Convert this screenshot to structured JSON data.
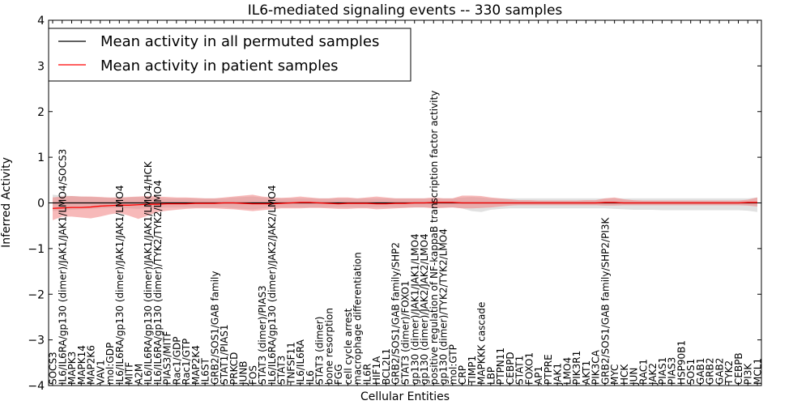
{
  "chart_data": {
    "type": "line",
    "title": "IL6-mediated signaling events -- 330 samples",
    "xlabel": "Cellular Entities",
    "ylabel": "Inferred Activity",
    "ylim": [
      -4,
      4
    ],
    "yticks": [
      "4",
      "3",
      "2",
      "1",
      "0",
      "−1",
      "−2",
      "−3",
      "−4"
    ],
    "legend": {
      "location": "top-left",
      "entries": [
        {
          "label": "Mean activity in all permuted samples",
          "color": "#000000"
        },
        {
          "label": "Mean activity in patient samples",
          "color": "#ff0000"
        }
      ]
    },
    "categories": [
      "SOCS3",
      "IL6/IL6RA/gp130 (dimer)/JAK1/JAK1/LMO4/SOCS3",
      "MAPK3",
      "MAPK14",
      "MAP2K6",
      "VAV1",
      "mol:GDP",
      "IL6/IL6RA/gp130 (dimer)/JAK1/JAK1/LMO4",
      "MITF",
      "A2M",
      "IL6/IL6RA/gp130 (dimer)/JAK1/JAK1/LMO4/HCK",
      "IL6/IL6RA/gp130 (dimer)/TYK2/TYK2/LMO4",
      "PIAS3/MITF",
      "Rac1/GDP",
      "Rac1/GTP",
      "MAP2K4",
      "IL6ST",
      "GRB2/SOS1/GAB family",
      "STAT1/PIAS1",
      "PRKCD",
      "JUNB",
      "FOS",
      "STAT3 (dimer)/PIAS3",
      "IL6/IL6RA/gp130 (dimer)/JAK2/JAK2/LMO4",
      "STAT3",
      "TNFSF11",
      "IL6/IL6RA",
      "IL6",
      "STAT3 (dimer)",
      "bone resorption",
      "FGG",
      "cell cycle arrest",
      "macrophage differentiation",
      "IL6R",
      "HIF1A",
      "BCL2L1",
      "GRB2/SOS1/GAB family/SHP2",
      "STAT3 (dimer)/FOXO1",
      "gp130 (dimer)/JAK1/JAK1/LMO4",
      "gp130 (dimer)/JAK2/JAK2/LMO4",
      "positive regulation of NF-kappaB transcription factor activity",
      "gp130 (dimer)/TYK2/TYK2/LMO4",
      "mol:GTP",
      "CRP",
      "TIMP1",
      "MAPKKK cascade",
      "LBP",
      "PTPN11",
      "CEBPD",
      "STAT1",
      "FOXO1",
      "AP1",
      "PTPRE",
      "JAK1",
      "LMO4",
      "PIK3R1",
      "AKT1",
      "PIK3CA",
      "GRB2/SOS1/GAB family/SHP2/PI3K",
      "MYC",
      "HCK",
      "JUN",
      "RAC1",
      "JAK2",
      "PIAS1",
      "PIAS3",
      "HSP90B1",
      "SOS1",
      "GAB1",
      "GRB2",
      "GAB2",
      "TYK2",
      "CEBPB",
      "PI3K",
      "MCL1"
    ],
    "series": [
      {
        "name": "Mean activity in patient samples",
        "color": "#ff0000",
        "values": [
          -0.12,
          -0.11,
          -0.1,
          -0.1,
          -0.09,
          -0.07,
          -0.06,
          -0.05,
          -0.05,
          -0.04,
          -0.03,
          -0.03,
          -0.02,
          -0.02,
          -0.02,
          -0.01,
          -0.01,
          -0.01,
          0.0,
          0.0,
          -0.01,
          -0.02,
          -0.02,
          -0.02,
          -0.01,
          0.0,
          0.01,
          0.01,
          0.0,
          -0.01,
          -0.02,
          -0.01,
          -0.01,
          -0.01,
          -0.02,
          -0.02,
          -0.01,
          -0.01,
          0.0,
          0.0,
          0.01,
          0.01,
          0.01,
          0.0,
          0.0,
          0.0,
          0.0,
          0.0,
          0.0,
          0.0,
          0.0,
          0.0,
          0.0,
          0.0,
          0.0,
          0.0,
          0.0,
          0.0,
          0.01,
          0.01,
          0.0,
          0.0,
          0.0,
          0.0,
          0.0,
          0.0,
          0.0,
          0.0,
          0.0,
          0.0,
          0.0,
          0.0,
          0.0,
          0.01,
          0.01
        ],
        "upper": [
          0.12,
          0.14,
          0.15,
          0.14,
          0.14,
          0.13,
          0.12,
          0.12,
          0.13,
          0.14,
          0.15,
          0.14,
          0.13,
          0.12,
          0.12,
          0.11,
          0.1,
          0.1,
          0.12,
          0.14,
          0.16,
          0.18,
          0.14,
          0.12,
          0.11,
          0.12,
          0.14,
          0.12,
          0.1,
          0.1,
          0.12,
          0.12,
          0.1,
          0.12,
          0.14,
          0.12,
          0.1,
          0.1,
          0.1,
          0.1,
          0.12,
          0.1,
          0.1,
          0.16,
          0.16,
          0.15,
          0.12,
          0.1,
          0.08,
          0.06,
          0.06,
          0.05,
          0.05,
          0.05,
          0.05,
          0.05,
          0.06,
          0.06,
          0.1,
          0.12,
          0.08,
          0.06,
          0.05,
          0.05,
          0.05,
          0.05,
          0.05,
          0.05,
          0.05,
          0.05,
          0.05,
          0.05,
          0.05,
          0.07,
          0.12
        ],
        "lower": [
          -0.38,
          -0.3,
          -0.3,
          -0.32,
          -0.34,
          -0.3,
          -0.25,
          -0.22,
          -0.28,
          -0.35,
          -0.28,
          -0.2,
          -0.17,
          -0.15,
          -0.13,
          -0.12,
          -0.12,
          -0.12,
          -0.13,
          -0.14,
          -0.16,
          -0.18,
          -0.16,
          -0.14,
          -0.12,
          -0.12,
          -0.12,
          -0.11,
          -0.11,
          -0.12,
          -0.13,
          -0.13,
          -0.12,
          -0.12,
          -0.14,
          -0.13,
          -0.12,
          -0.11,
          -0.1,
          -0.1,
          -0.12,
          -0.11,
          -0.1,
          -0.12,
          -0.12,
          -0.11,
          -0.1,
          -0.08,
          -0.06,
          -0.05,
          -0.05,
          -0.05,
          -0.05,
          -0.05,
          -0.05,
          -0.05,
          -0.05,
          -0.05,
          -0.06,
          -0.06,
          -0.05,
          -0.05,
          -0.05,
          -0.05,
          -0.05,
          -0.05,
          -0.05,
          -0.05,
          -0.05,
          -0.05,
          -0.05,
          -0.05,
          -0.05,
          -0.06,
          -0.08
        ]
      },
      {
        "name": "Mean activity in all permuted samples",
        "color": "#000000",
        "values": [
          0,
          0,
          0,
          0,
          0,
          0,
          0,
          0,
          0,
          0,
          0,
          0,
          0,
          0,
          0,
          0,
          0,
          0,
          0,
          0,
          0,
          0,
          0,
          0,
          0,
          0,
          0,
          0,
          0,
          0,
          0,
          0,
          0,
          0,
          0,
          0,
          0,
          0,
          0,
          0,
          0,
          0,
          0,
          0,
          0,
          0,
          0,
          0,
          0,
          0,
          0,
          0,
          0,
          0,
          0,
          0,
          0,
          0,
          0,
          0,
          0,
          0,
          0,
          0,
          0,
          0,
          0,
          0,
          0,
          0,
          0,
          0,
          0,
          0,
          0
        ],
        "upper": [
          0.18,
          0.16,
          0.15,
          0.14,
          0.13,
          0.12,
          0.11,
          0.11,
          0.12,
          0.13,
          0.12,
          0.11,
          0.1,
          0.1,
          0.1,
          0.1,
          0.1,
          0.1,
          0.1,
          0.12,
          0.13,
          0.14,
          0.12,
          0.1,
          0.1,
          0.1,
          0.1,
          0.1,
          0.1,
          0.1,
          0.1,
          0.1,
          0.1,
          0.1,
          0.1,
          0.1,
          0.1,
          0.1,
          0.1,
          0.1,
          0.1,
          0.1,
          0.1,
          0.12,
          0.13,
          0.12,
          0.1,
          0.1,
          0.1,
          0.1,
          0.1,
          0.1,
          0.1,
          0.1,
          0.1,
          0.1,
          0.1,
          0.1,
          0.1,
          0.1,
          0.1,
          0.1,
          0.1,
          0.1,
          0.1,
          0.1,
          0.1,
          0.1,
          0.1,
          0.1,
          0.1,
          0.1,
          0.1,
          0.1,
          0.12
        ],
        "lower": [
          -0.18,
          -0.16,
          -0.15,
          -0.14,
          -0.13,
          -0.12,
          -0.11,
          -0.11,
          -0.12,
          -0.13,
          -0.12,
          -0.11,
          -0.1,
          -0.1,
          -0.1,
          -0.1,
          -0.1,
          -0.1,
          -0.1,
          -0.12,
          -0.13,
          -0.14,
          -0.12,
          -0.1,
          -0.1,
          -0.1,
          -0.1,
          -0.1,
          -0.1,
          -0.1,
          -0.1,
          -0.1,
          -0.1,
          -0.1,
          -0.1,
          -0.1,
          -0.1,
          -0.1,
          -0.1,
          -0.1,
          -0.1,
          -0.1,
          -0.1,
          -0.12,
          -0.18,
          -0.2,
          -0.15,
          -0.13,
          -0.12,
          -0.12,
          -0.12,
          -0.12,
          -0.12,
          -0.12,
          -0.12,
          -0.12,
          -0.12,
          -0.12,
          -0.12,
          -0.13,
          -0.14,
          -0.15,
          -0.15,
          -0.15,
          -0.16,
          -0.16,
          -0.16,
          -0.16,
          -0.16,
          -0.16,
          -0.16,
          -0.16,
          -0.16,
          -0.17,
          -0.2
        ]
      }
    ]
  }
}
